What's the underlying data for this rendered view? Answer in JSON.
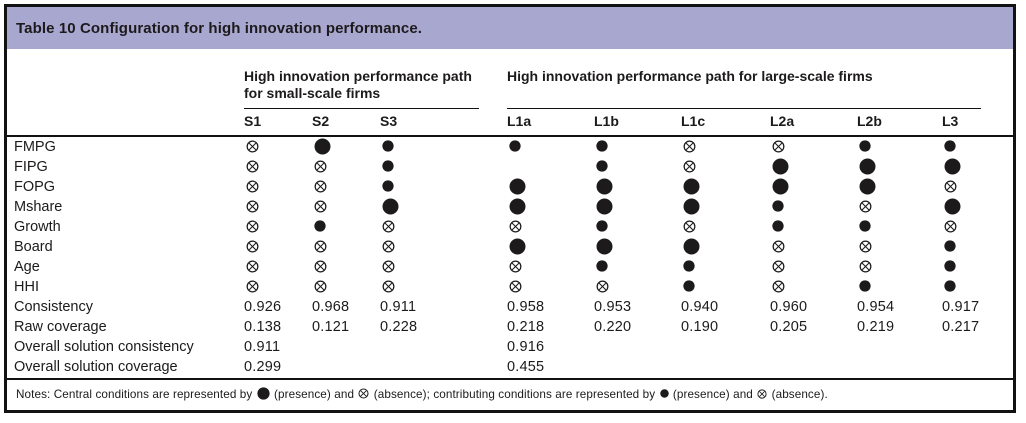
{
  "table": {
    "title": "Table 10 Configuration for high innovation performance.",
    "groups": [
      {
        "label": "High innovation performance path for small-scale firms",
        "columns": [
          "S1",
          "S2",
          "S3"
        ]
      },
      {
        "label": "High innovation performance path for large-scale firms",
        "columns": [
          "L1a",
          "L1b",
          "L1c",
          "L2a",
          "L2b",
          "L3"
        ]
      }
    ],
    "symbol_legend": {
      "PC": "large filled circle — central condition, presence",
      "P": "small filled circle — contributing condition, presence",
      "AC": "large crossed circle — central condition, absence",
      "A": "small crossed circle — contributing condition, absence",
      "": "blank — condition irrelevant"
    },
    "condition_rows": [
      {
        "label": "FMPG",
        "cells": [
          "A",
          "PC",
          "P",
          "P",
          "P",
          "A",
          "A",
          "P",
          "P"
        ]
      },
      {
        "label": "FIPG",
        "cells": [
          "A",
          "A",
          "P",
          "",
          "P",
          "A",
          "PC",
          "PC",
          "PC"
        ]
      },
      {
        "label": "FOPG",
        "cells": [
          "A",
          "A",
          "P",
          "PC",
          "PC",
          "PC",
          "PC",
          "PC",
          "A"
        ]
      },
      {
        "label": "Mshare",
        "cells": [
          "A",
          "A",
          "PC",
          "PC",
          "PC",
          "PC",
          "P",
          "A",
          "PC"
        ]
      },
      {
        "label": "Growth",
        "cells": [
          "A",
          "P",
          "A",
          "A",
          "P",
          "A",
          "P",
          "P",
          "A"
        ]
      },
      {
        "label": "Board",
        "cells": [
          "A",
          "A",
          "A",
          "PC",
          "PC",
          "PC",
          "A",
          "A",
          "P"
        ]
      },
      {
        "label": "Age",
        "cells": [
          "A",
          "A",
          "A",
          "A",
          "P",
          "P",
          "A",
          "A",
          "P"
        ]
      },
      {
        "label": "HHI",
        "cells": [
          "A",
          "A",
          "A",
          "A",
          "A",
          "P",
          "A",
          "P",
          "P"
        ]
      }
    ],
    "stat_rows": [
      {
        "label": "Consistency",
        "cells": [
          "0.926",
          "0.968",
          "0.911",
          "0.958",
          "0.953",
          "0.940",
          "0.960",
          "0.954",
          "0.917"
        ]
      },
      {
        "label": "Raw coverage",
        "cells": [
          "0.138",
          "0.121",
          "0.228",
          "0.218",
          "0.220",
          "0.190",
          "0.205",
          "0.219",
          "0.217"
        ]
      },
      {
        "label": "Overall solution consistency",
        "cells": [
          "0.911",
          "",
          "",
          "0.916",
          "",
          "",
          "",
          "",
          ""
        ]
      },
      {
        "label": "Overall solution coverage",
        "cells": [
          "0.299",
          "",
          "",
          "0.455",
          "",
          "",
          "",
          "",
          ""
        ]
      }
    ],
    "notes_parts": [
      {
        "text": "Notes: Central conditions are represented by "
      },
      {
        "symbol": "PC"
      },
      {
        "text": " (presence) and "
      },
      {
        "symbol": "AC"
      },
      {
        "text": " (absence); contributing conditions are represented by "
      },
      {
        "symbol": "P"
      },
      {
        "text": " (presence) and "
      },
      {
        "symbol": "A"
      },
      {
        "text": " (absence)."
      }
    ]
  },
  "colors": {
    "title_bar": "#a8a7d0",
    "text": "#1c1a1b",
    "border": "#121212"
  }
}
